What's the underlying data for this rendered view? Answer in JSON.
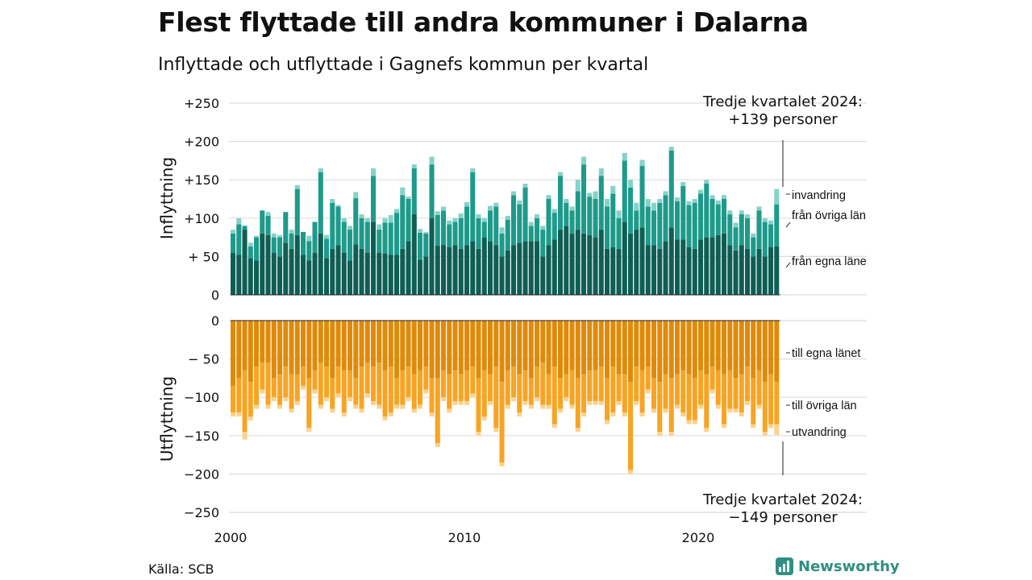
{
  "title": "Flest flyttade till andra kommuner i Dalarna",
  "subtitle": "Inflyttade och utflyttade i Gagnefs kommun per kvartal",
  "source": "Källa: SCB",
  "brand": "Newsworthy",
  "colors": {
    "in_own": "#0f5e54",
    "in_other": "#1e9a8a",
    "in_abroad": "#85d2c7",
    "out_own": "#e08a0a",
    "out_other": "#f7a425",
    "out_abroad": "#fbd28e",
    "grid": "#dddddd"
  },
  "chart_data": {
    "type": "bar",
    "stacked": true,
    "x_start_year": 2000,
    "quarters_per_year": 4,
    "x_tick_labels": [
      "2000",
      "2010",
      "2020"
    ],
    "top_panel": {
      "ylabel": "Inflyttning",
      "ylim": [
        0,
        250
      ],
      "y_tick_labels": [
        "0",
        "+ 50",
        "+100",
        "+150",
        "+200",
        "+250"
      ],
      "annotation": [
        "Tredje kvartalet 2024:",
        "+139 personer"
      ],
      "series": [
        {
          "name": "från egna läne",
          "values": [
            55,
            52,
            85,
            48,
            45,
            80,
            78,
            55,
            50,
            68,
            60,
            78,
            52,
            45,
            55,
            80,
            48,
            60,
            65,
            55,
            45,
            66,
            60,
            55,
            95,
            55,
            54,
            52,
            52,
            60,
            70,
            105,
            46,
            50,
            100,
            64,
            65,
            62,
            65,
            60,
            65,
            70,
            60,
            75,
            70,
            65,
            50,
            58,
            65,
            68,
            70,
            70,
            70,
            50,
            65,
            72,
            85,
            90,
            80,
            85,
            80,
            78,
            75,
            85,
            60,
            62,
            60,
            95,
            80,
            85,
            88,
            65,
            65,
            60,
            70,
            88,
            72,
            72,
            62,
            60,
            72,
            75,
            75,
            78,
            80,
            65,
            58,
            65,
            60,
            50,
            60,
            50,
            62,
            63
          ]
        },
        {
          "name": "från övriga län",
          "values": [
            25,
            40,
            5,
            15,
            30,
            30,
            25,
            20,
            25,
            40,
            20,
            60,
            30,
            25,
            40,
            80,
            25,
            60,
            50,
            40,
            40,
            60,
            40,
            40,
            60,
            30,
            40,
            42,
            55,
            70,
            55,
            60,
            35,
            30,
            70,
            40,
            45,
            30,
            30,
            40,
            50,
            90,
            40,
            20,
            40,
            50,
            30,
            40,
            65,
            50,
            70,
            20,
            30,
            35,
            60,
            35,
            70,
            30,
            30,
            50,
            90,
            50,
            50,
            70,
            55,
            70,
            40,
            80,
            60,
            25,
            80,
            50,
            45,
            60,
            60,
            100,
            50,
            70,
            55,
            60,
            60,
            70,
            50,
            40,
            45,
            40,
            30,
            40,
            40,
            25,
            50,
            45,
            30,
            55
          ]
        },
        {
          "name": "invandring",
          "values": [
            5,
            8,
            0,
            5,
            2,
            0,
            5,
            5,
            3,
            0,
            5,
            5,
            0,
            7,
            0,
            5,
            5,
            5,
            2,
            5,
            5,
            8,
            5,
            5,
            10,
            7,
            6,
            10,
            5,
            10,
            3,
            5,
            5,
            2,
            10,
            5,
            5,
            5,
            5,
            6,
            6,
            5,
            5,
            5,
            6,
            5,
            8,
            5,
            5,
            5,
            5,
            5,
            5,
            5,
            5,
            5,
            5,
            5,
            5,
            15,
            10,
            5,
            10,
            10,
            10,
            10,
            10,
            10,
            10,
            10,
            8,
            10,
            10,
            5,
            5,
            5,
            5,
            5,
            5,
            5,
            5,
            5,
            5,
            5,
            5,
            5,
            6,
            5,
            5,
            5,
            5,
            5,
            5,
            20
          ]
        }
      ]
    },
    "bottom_panel": {
      "ylabel": "Utflyttning",
      "ylim": [
        -250,
        0
      ],
      "y_tick_labels": [
        "0",
        "− 50",
        "−100",
        "−150",
        "−200",
        "−250"
      ],
      "annotation": [
        "Tredje kvartalet 2024:",
        "−149 personer"
      ],
      "series": [
        {
          "name": "till egna länet",
          "values": [
            -85,
            -75,
            -65,
            -80,
            -60,
            -55,
            -55,
            -75,
            -70,
            -60,
            -70,
            -70,
            -60,
            -75,
            -65,
            -55,
            -60,
            -75,
            -60,
            -65,
            -65,
            -75,
            -60,
            -55,
            -60,
            -55,
            -65,
            -60,
            -75,
            -65,
            -60,
            -70,
            -65,
            -60,
            -75,
            -75,
            -65,
            -70,
            -65,
            -70,
            -65,
            -60,
            -75,
            -65,
            -70,
            -60,
            -80,
            -65,
            -60,
            -70,
            -65,
            -75,
            -60,
            -55,
            -70,
            -60,
            -75,
            -70,
            -65,
            -75,
            -70,
            -65,
            -65,
            -60,
            -75,
            -60,
            -70,
            -70,
            -80,
            -60,
            -65,
            -60,
            -75,
            -80,
            -70,
            -75,
            -70,
            -65,
            -70,
            -75,
            -65,
            -70,
            -60,
            -65,
            -70,
            -65,
            -75,
            -70,
            -60,
            -75,
            -65,
            -80,
            -70,
            -80
          ]
        },
        {
          "name": "till övriga län",
          "values": [
            -35,
            -45,
            -80,
            -45,
            -50,
            -35,
            -55,
            -25,
            -40,
            -40,
            -45,
            -35,
            -25,
            -65,
            -25,
            -55,
            -40,
            -40,
            -35,
            -55,
            -35,
            -35,
            -55,
            -40,
            -45,
            -55,
            -60,
            -60,
            -35,
            -45,
            -40,
            -45,
            -45,
            -30,
            -45,
            -85,
            -35,
            -45,
            -40,
            -35,
            -40,
            -35,
            -70,
            -60,
            -35,
            -80,
            -105,
            -45,
            -40,
            -50,
            -40,
            -35,
            -40,
            -55,
            -40,
            -75,
            -40,
            -30,
            -45,
            -65,
            -50,
            -40,
            -40,
            -45,
            -55,
            -60,
            -35,
            -50,
            -115,
            -45,
            -55,
            -30,
            -40,
            -65,
            -45,
            -70,
            -40,
            -55,
            -60,
            -55,
            -45,
            -70,
            -30,
            -45,
            -65,
            -50,
            -40,
            -50,
            -45,
            -60,
            -45,
            -65,
            -65,
            -55
          ]
        },
        {
          "name": "utvandring",
          "values": [
            -5,
            -5,
            -10,
            -5,
            -5,
            -5,
            -5,
            -5,
            -5,
            -5,
            -5,
            -5,
            -5,
            -5,
            -5,
            -5,
            -5,
            -5,
            -5,
            -5,
            -5,
            -5,
            -5,
            -5,
            -5,
            -5,
            -5,
            -5,
            -5,
            -5,
            -5,
            -5,
            -5,
            -5,
            -5,
            -5,
            -5,
            -5,
            -5,
            -5,
            -5,
            -5,
            -5,
            -5,
            -5,
            -5,
            -5,
            -5,
            -5,
            -5,
            -5,
            -5,
            -5,
            -5,
            -5,
            -5,
            -5,
            -5,
            -5,
            -5,
            -5,
            -5,
            -5,
            -5,
            -5,
            -5,
            -5,
            -5,
            -5,
            -5,
            -5,
            -5,
            -5,
            -5,
            -5,
            -5,
            -5,
            -5,
            -5,
            -5,
            -5,
            -5,
            -5,
            -5,
            -5,
            -5,
            -5,
            -5,
            -5,
            -5,
            -5,
            -5,
            -5,
            -14
          ]
        }
      ]
    }
  }
}
